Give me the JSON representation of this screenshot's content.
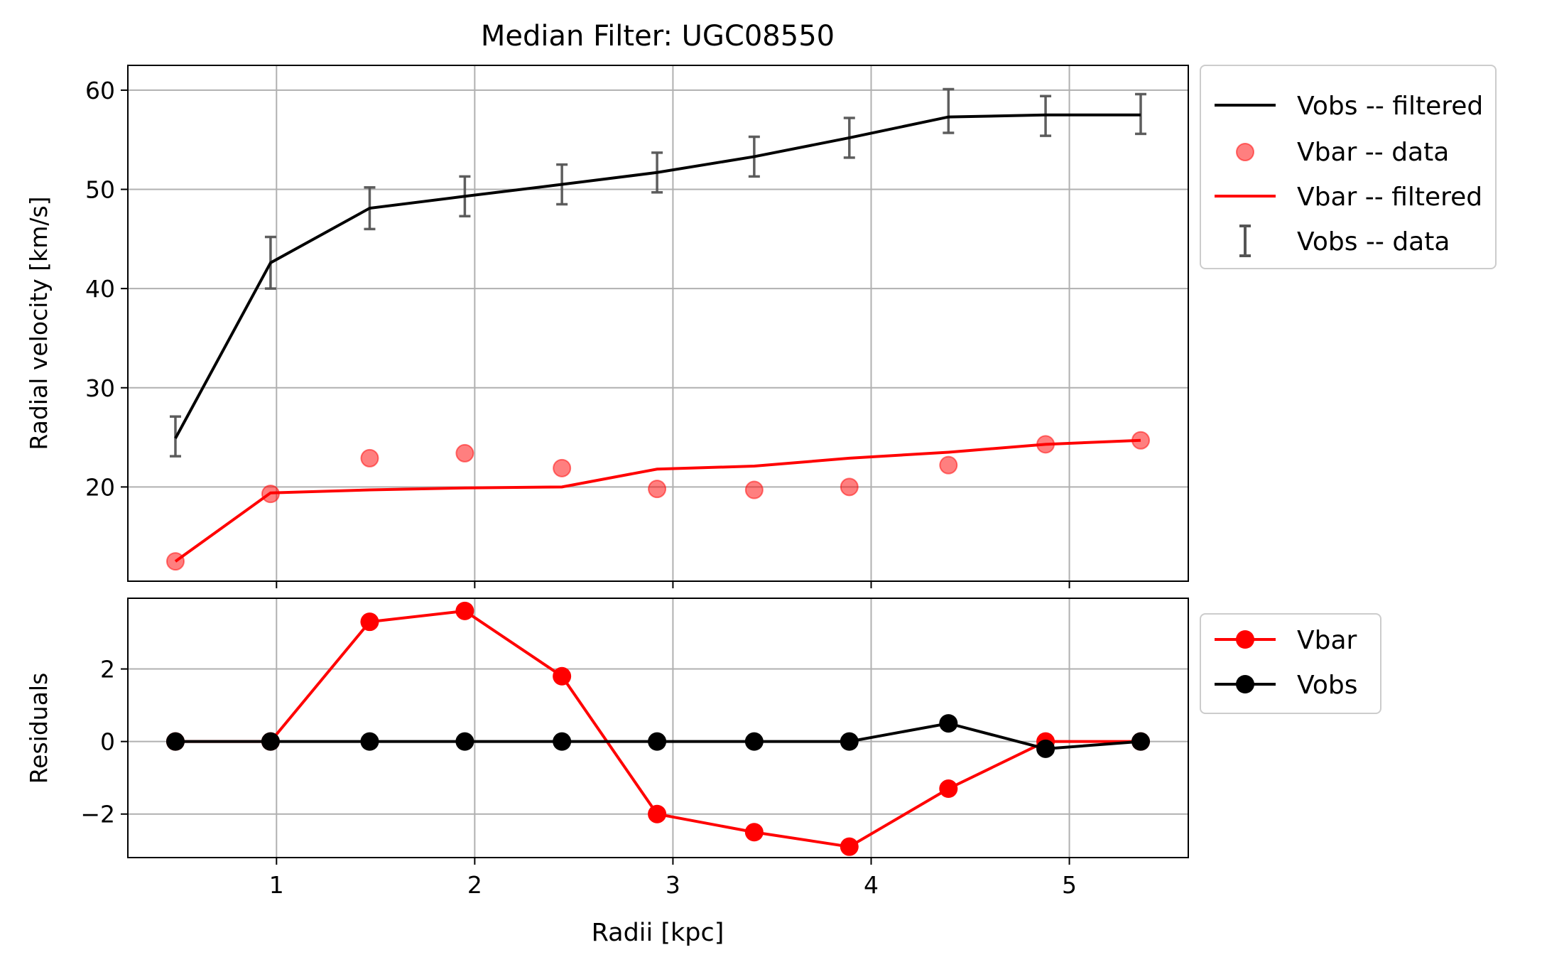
{
  "chart_data": [
    {
      "type": "line",
      "title": "Median Filter: UGC08550",
      "xlabel": "",
      "ylabel": "Radial velocity [km/s]",
      "xlim": [
        0.25,
        5.6
      ],
      "ylim": [
        10.5,
        62.5
      ],
      "yticks": [
        20,
        30,
        40,
        50,
        60
      ],
      "xticks": [
        1,
        2,
        3,
        4,
        5
      ],
      "grid": true,
      "legend_position": "outside-right",
      "x": [
        0.49,
        0.97,
        1.47,
        1.95,
        2.44,
        2.92,
        3.41,
        3.89,
        4.39,
        4.88,
        5.36
      ],
      "series": [
        {
          "name": "Vobs -- filtered",
          "kind": "line",
          "color": "#000000",
          "values": [
            24.9,
            42.6,
            48.1,
            49.3,
            50.5,
            51.7,
            53.3,
            55.2,
            57.3,
            57.5,
            57.5
          ]
        },
        {
          "name": "Vbar -- data",
          "kind": "scatter",
          "color": "#ff0000",
          "values": [
            12.5,
            19.3,
            22.9,
            23.4,
            21.9,
            19.8,
            19.7,
            20.0,
            22.2,
            24.3,
            24.7
          ]
        },
        {
          "name": "Vbar -- filtered",
          "kind": "line",
          "color": "#ff0000",
          "values": [
            12.5,
            19.4,
            19.7,
            19.9,
            20.0,
            21.8,
            22.1,
            22.9,
            23.5,
            24.3,
            24.7
          ]
        },
        {
          "name": "Vobs -- data",
          "kind": "errorbar",
          "color": "#555555",
          "values": [
            25.1,
            42.6,
            48.1,
            49.3,
            50.5,
            51.7,
            53.3,
            55.2,
            57.9,
            57.4,
            57.6
          ],
          "errors": [
            2.0,
            2.6,
            2.1,
            2.0,
            2.0,
            2.0,
            2.0,
            2.0,
            2.2,
            2.0,
            2.0
          ]
        }
      ]
    },
    {
      "type": "line",
      "title": "",
      "xlabel": "Radii [kpc]",
      "ylabel": "Residuals",
      "xlim": [
        0.25,
        5.6
      ],
      "ylim": [
        -3.2,
        3.95
      ],
      "yticks": [
        -2,
        0,
        2
      ],
      "yticklabels": [
        "−2",
        "0",
        "2"
      ],
      "xticks": [
        1,
        2,
        3,
        4,
        5
      ],
      "xticklabels": [
        "1",
        "2",
        "3",
        "4",
        "5"
      ],
      "grid": true,
      "legend_position": "outside-right",
      "x": [
        0.49,
        0.97,
        1.47,
        1.95,
        2.44,
        2.92,
        3.41,
        3.89,
        4.39,
        4.88,
        5.36
      ],
      "series": [
        {
          "name": "Vbar",
          "kind": "line-marker",
          "color": "#ff0000",
          "values": [
            0,
            0,
            3.3,
            3.6,
            1.8,
            -2.0,
            -2.5,
            -2.9,
            -1.3,
            0,
            0
          ]
        },
        {
          "name": "Vobs",
          "kind": "line-marker",
          "color": "#000000",
          "values": [
            0,
            0,
            0,
            0,
            0,
            0,
            0,
            0,
            0.5,
            -0.2,
            0
          ]
        }
      ]
    }
  ]
}
